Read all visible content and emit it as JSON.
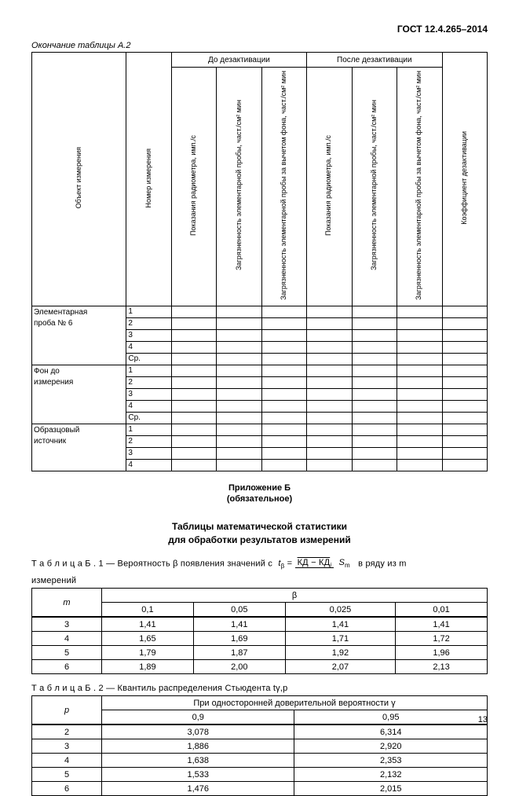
{
  "doc": {
    "standard": "ГОСТ 12.4.265–2014",
    "continuation": "Окончание таблицы А.2",
    "page_number": "13"
  },
  "a2": {
    "group_before": "До дезактивации",
    "group_after": "После дезактивации",
    "headers": {
      "object": "Объект измерения",
      "number": "Номер измерения",
      "radiometer": "Показания радиометра,\nимп./с",
      "contamination": "Загрязненность\nэлементарной пробы,\nчаст./см² мин",
      "contamination_minus_bg": "Загрязненность\nэлементарной пробы за\nвычетом фона, част./см²\nмин",
      "coefficient": "Коэффициент\nдезактивации"
    },
    "objects": [
      {
        "label1": "Элементарная",
        "label2": "проба № 6",
        "rows": [
          "1",
          "2",
          "3",
          "4",
          "Ср."
        ]
      },
      {
        "label1": "Фон       до",
        "label2": "измерения",
        "rows": [
          "1",
          "2",
          "3",
          "4",
          "Ср."
        ]
      },
      {
        "label1": "Образцовый",
        "label2": "источник",
        "rows": [
          "1",
          "2",
          "3",
          "4"
        ]
      }
    ]
  },
  "annex_b": {
    "title_line1": "Приложение Б",
    "title_line2": "(обязательное)",
    "section_line1": "Таблицы математической статистики",
    "section_line2": "для обработки результатов измерений"
  },
  "b1": {
    "caption_prefix": "Т а б л и ц а   Б . 1",
    "caption_text": " — Вероятность β появления значений с ",
    "formula_lhs": "tβ",
    "formula_num": "КД − КД",
    "formula_sub": "i",
    "formula_den": "Sₘ",
    "caption_suffix": " в ряду из m",
    "caption_line2": "измерений",
    "header_m": "m",
    "header_beta": "β",
    "cols": [
      "0,1",
      "0,05",
      "0,025",
      "0,01"
    ],
    "rows": [
      {
        "m": "3",
        "v": [
          "1,41",
          "1,41",
          "1,41",
          "1,41"
        ]
      },
      {
        "m": "4",
        "v": [
          "1,65",
          "1,69",
          "1,71",
          "1,72"
        ]
      },
      {
        "m": "5",
        "v": [
          "1,79",
          "1,87",
          "1,92",
          "1,96"
        ]
      },
      {
        "m": "6",
        "v": [
          "1,89",
          "2,00",
          "2,07",
          "2,13"
        ]
      }
    ]
  },
  "b2": {
    "caption_prefix": "Т а б л и ц а   Б . 2",
    "caption_text": " — Квантиль распределения Стьюдента tγ,p",
    "header_p": "p",
    "header_gamma": "При односторонней доверительной вероятности γ",
    "cols": [
      "0,9",
      "0,95"
    ],
    "rows": [
      {
        "p": "2",
        "v": [
          "3,078",
          "6,314"
        ]
      },
      {
        "p": "3",
        "v": [
          "1,886",
          "2,920"
        ]
      },
      {
        "p": "4",
        "v": [
          "1,638",
          "2,353"
        ]
      },
      {
        "p": "5",
        "v": [
          "1,533",
          "2,132"
        ]
      },
      {
        "p": "6",
        "v": [
          "1,476",
          "2,015"
        ]
      }
    ]
  }
}
